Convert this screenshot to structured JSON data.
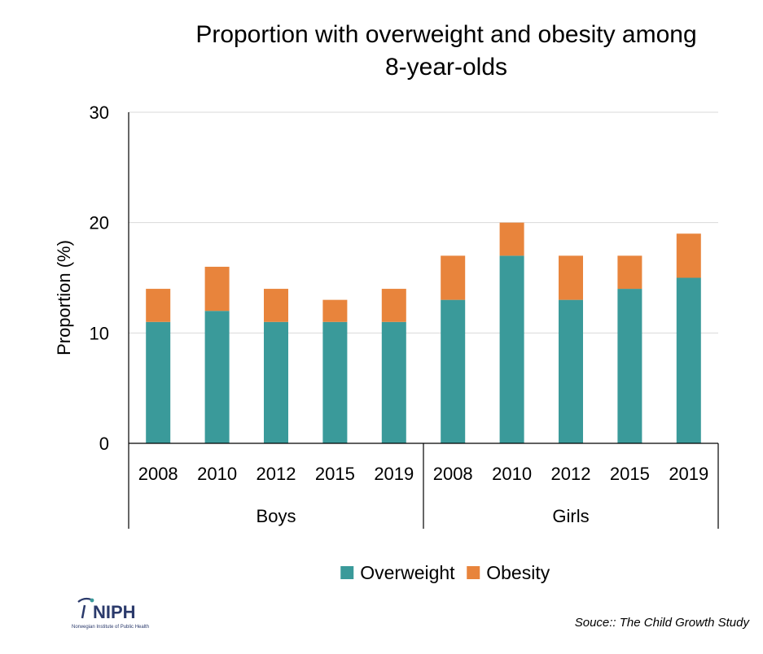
{
  "chart_data": {
    "type": "bar",
    "stacked": true,
    "title": "Proportion with overweight and obesity among 8-year-olds",
    "title_lines": [
      "Proportion with overweight and obesity among",
      "8-year-olds"
    ],
    "ylabel": "Proportion (%)",
    "xlabel": "",
    "ylim": [
      0,
      30
    ],
    "yticks": [
      0,
      10,
      20,
      30
    ],
    "grid": true,
    "legend_position": "bottom",
    "groups": [
      {
        "label": "Boys",
        "categories": [
          "2008",
          "2010",
          "2012",
          "2015",
          "2019"
        ]
      },
      {
        "label": "Girls",
        "categories": [
          "2008",
          "2010",
          "2012",
          "2015",
          "2019"
        ]
      }
    ],
    "series": [
      {
        "name": "Overweight",
        "color": "#3a9a9a",
        "values": [
          11,
          12,
          11,
          11,
          11,
          13,
          17,
          13,
          14,
          15
        ]
      },
      {
        "name": "Obesity",
        "color": "#e8843c",
        "values": [
          3,
          4,
          3,
          2,
          3,
          4,
          3,
          4,
          3,
          4
        ]
      }
    ]
  },
  "legend": {
    "items": [
      {
        "label": "Overweight",
        "color": "#3a9a9a"
      },
      {
        "label": "Obesity",
        "color": "#e8843c"
      }
    ]
  },
  "source": "Souce:: The Child Growth Study",
  "logo": {
    "name": "NIPH",
    "subtitle": "Norwegian Institute of Public Health"
  }
}
